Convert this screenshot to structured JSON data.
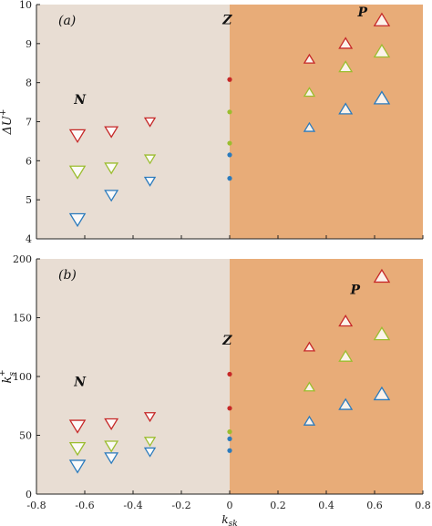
{
  "colors": {
    "left_region": "#e8ddd3",
    "right_region": "#e8ac78",
    "red": "#c62828",
    "green": "#9bbd2f",
    "blue": "#2b7bbd",
    "axis": "#222222"
  },
  "shared_x": {
    "label": "k_sk",
    "label_main": "k",
    "label_sub": "sk",
    "xlim": [
      -0.8,
      0.8
    ],
    "ticks": [
      "-0.8",
      "-0.6",
      "-0.4",
      "-0.2",
      "0",
      "0.2",
      "0.4",
      "0.6",
      "0.8"
    ]
  },
  "chart_data": [
    {
      "type": "scatter",
      "panel": "(a)",
      "ylabel": "ΔU+",
      "ylabel_main": "ΔU",
      "ylabel_sup": "+",
      "ylim": [
        4,
        10
      ],
      "yticks": [
        "4",
        "5",
        "6",
        "7",
        "8",
        "9",
        "10"
      ],
      "region_labels": [
        "N",
        "Z",
        "P"
      ],
      "region_split_x": 0,
      "series": [
        {
          "color": "red",
          "x": [
            -0.63,
            -0.49,
            -0.33,
            0,
            0.33,
            0.48,
            0.63
          ],
          "y": [
            6.65,
            6.75,
            7.0,
            8.08,
            8.6,
            9.0,
            9.6
          ],
          "marker": [
            "down",
            "down",
            "down",
            "dot",
            "up",
            "up",
            "up"
          ],
          "size": [
            1.25,
            1.05,
            0.85,
            1,
            0.85,
            1.05,
            1.25
          ]
        },
        {
          "color": "green",
          "x": [
            -0.63,
            -0.49,
            -0.33,
            0,
            0.33,
            0.48,
            0.63
          ],
          "y": [
            5.72,
            5.82,
            6.05,
            7.25,
            7.75,
            8.4,
            8.8
          ],
          "marker": [
            "down",
            "down",
            "down",
            "dot",
            "up",
            "up",
            "up"
          ],
          "size": [
            1.25,
            1.05,
            0.85,
            1,
            0.85,
            1.05,
            1.25
          ]
        },
        {
          "color": "green",
          "x": [
            0
          ],
          "y": [
            6.45
          ],
          "marker": [
            "dot"
          ],
          "size": [
            1
          ]
        },
        {
          "color": "blue",
          "x": [
            -0.63,
            -0.49,
            -0.33,
            0,
            0.33,
            0.48,
            0.63
          ],
          "y": [
            4.5,
            5.12,
            5.48,
            6.15,
            6.85,
            7.32,
            7.6
          ],
          "marker": [
            "down",
            "down",
            "down",
            "dot",
            "up",
            "up",
            "up"
          ],
          "size": [
            1.25,
            1.05,
            0.85,
            1,
            0.85,
            1.05,
            1.25
          ]
        },
        {
          "color": "blue",
          "x": [
            0
          ],
          "y": [
            5.55
          ],
          "marker": [
            "dot"
          ],
          "size": [
            1
          ]
        }
      ]
    },
    {
      "type": "scatter",
      "panel": "(b)",
      "ylabel": "ks+",
      "ylabel_main": "k",
      "ylabel_sup": "+",
      "ylabel_sub": "s",
      "ylim": [
        0,
        200
      ],
      "yticks": [
        "0",
        "50",
        "100",
        "150",
        "200"
      ],
      "region_labels": [
        "N",
        "Z",
        "P"
      ],
      "region_split_x": 0,
      "series": [
        {
          "color": "red",
          "x": [
            -0.63,
            -0.49,
            -0.33,
            0,
            0.33,
            0.48,
            0.63
          ],
          "y": [
            58,
            60,
            66,
            102,
            125,
            147,
            185
          ],
          "marker": [
            "down",
            "down",
            "down",
            "dot",
            "up",
            "up",
            "up"
          ],
          "size": [
            1.25,
            1.05,
            0.85,
            1,
            0.85,
            1.05,
            1.25
          ]
        },
        {
          "color": "red",
          "x": [
            0
          ],
          "y": [
            73
          ],
          "marker": [
            "dot"
          ],
          "size": [
            1
          ]
        },
        {
          "color": "green",
          "x": [
            -0.63,
            -0.49,
            -0.33,
            0,
            0.33,
            0.48,
            0.63
          ],
          "y": [
            39,
            41,
            45,
            53,
            91,
            117,
            136
          ],
          "marker": [
            "down",
            "down",
            "down",
            "dot",
            "up",
            "up",
            "up"
          ],
          "size": [
            1.25,
            1.05,
            0.85,
            1,
            0.85,
            1.05,
            1.25
          ]
        },
        {
          "color": "blue",
          "x": [
            -0.63,
            -0.49,
            -0.33,
            0,
            0.33,
            0.48,
            0.63
          ],
          "y": [
            24,
            31,
            36,
            47,
            62,
            76,
            85
          ],
          "marker": [
            "down",
            "down",
            "down",
            "dot",
            "up",
            "up",
            "up"
          ],
          "size": [
            1.25,
            1.05,
            0.85,
            1,
            0.85,
            1.05,
            1.25
          ]
        },
        {
          "color": "blue",
          "x": [
            0
          ],
          "y": [
            37
          ],
          "marker": [
            "dot"
          ],
          "size": [
            1
          ]
        }
      ]
    }
  ]
}
